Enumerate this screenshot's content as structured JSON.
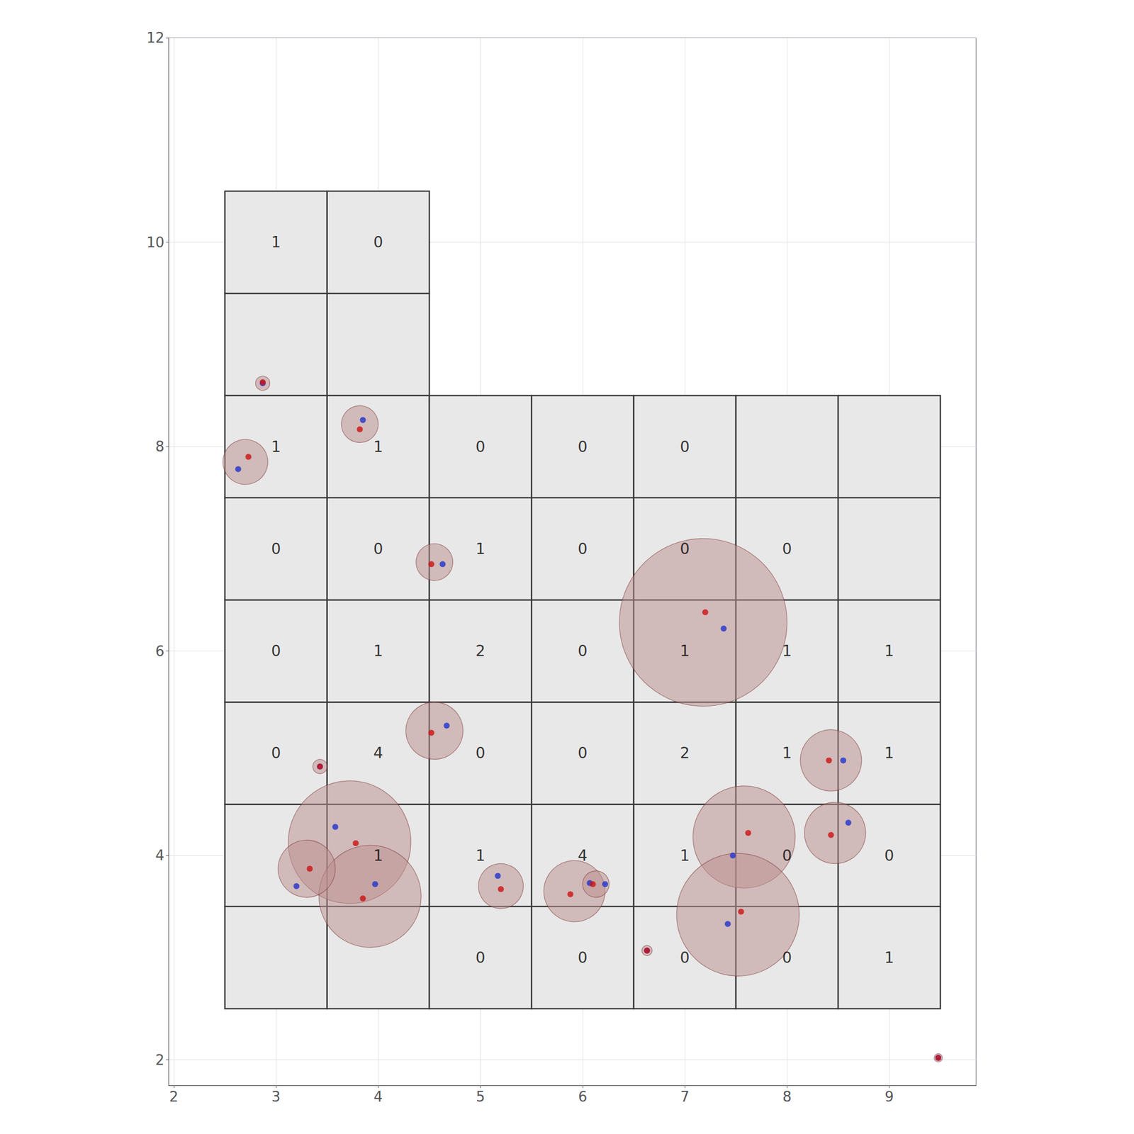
{
  "chart_data": {
    "type": "scatter",
    "xlim": [
      1.95,
      9.85
    ],
    "ylim": [
      1.75,
      12
    ],
    "xticks": [
      2,
      3,
      4,
      5,
      6,
      7,
      8,
      9
    ],
    "yticks": [
      2,
      4,
      6,
      8,
      10,
      12
    ],
    "grid": true,
    "series": [
      {
        "type": "cells",
        "color": "#e8e8e8",
        "blocks": [
          {
            "cols": [
              2.5,
              3.5,
              4.5
            ],
            "rows": [
              8.5,
              9.5,
              10.5
            ]
          },
          {
            "cols": [
              2.5,
              3.5,
              4.5,
              5.5,
              6.5,
              7.5,
              8.5,
              9.5
            ],
            "rows": [
              2.5,
              3.5,
              4.5,
              5.5,
              6.5,
              7.5,
              8.5
            ]
          }
        ]
      },
      {
        "type": "circles",
        "color": "#bc8f8f",
        "x": [
          2.87,
          2.7,
          3.82,
          4.55,
          7.18,
          8.43,
          4.55,
          3.43,
          3.72,
          3.92,
          3.3,
          5.2,
          5.92,
          6.13,
          6.63,
          7.58,
          7.52,
          8.47,
          9.48
        ],
        "y": [
          8.62,
          7.85,
          8.22,
          6.87,
          6.28,
          4.93,
          5.22,
          4.87,
          4.13,
          3.6,
          3.87,
          3.7,
          3.65,
          3.72,
          3.07,
          4.18,
          3.42,
          4.22,
          2.02
        ],
        "r": [
          0.07,
          0.22,
          0.18,
          0.18,
          0.82,
          0.3,
          0.28,
          0.07,
          0.6,
          0.5,
          0.28,
          0.22,
          0.3,
          0.13,
          0.05,
          0.5,
          0.6,
          0.3,
          0.04
        ]
      },
      {
        "type": "scatter",
        "color": "#2233cc",
        "x": [
          2.87,
          2.63,
          3.85,
          4.63,
          7.38,
          8.55,
          4.67,
          3.43,
          3.58,
          3.97,
          3.2,
          5.17,
          6.07,
          6.22,
          6.63,
          7.47,
          7.42,
          8.6,
          9.48
        ],
        "y": [
          8.62,
          7.78,
          8.26,
          6.85,
          6.22,
          4.93,
          5.27,
          4.87,
          4.28,
          3.72,
          3.7,
          3.8,
          3.73,
          3.72,
          3.07,
          4.0,
          3.33,
          4.32,
          2.02
        ]
      },
      {
        "type": "scatter",
        "color": "#cc1111",
        "x": [
          2.87,
          2.73,
          3.82,
          4.52,
          7.2,
          8.41,
          4.52,
          3.43,
          3.78,
          3.85,
          3.33,
          5.2,
          5.88,
          6.1,
          6.63,
          7.62,
          7.55,
          8.43,
          9.48
        ],
        "y": [
          8.63,
          7.9,
          8.17,
          6.85,
          6.38,
          4.93,
          5.2,
          4.87,
          4.12,
          3.58,
          3.87,
          3.67,
          3.62,
          3.72,
          3.07,
          4.22,
          3.45,
          4.2,
          2.02
        ]
      },
      {
        "type": "text",
        "x": [
          3.0,
          4.0,
          3.0,
          4.0,
          5.0,
          6.0,
          7.0,
          3.0,
          4.0,
          5.0,
          6.0,
          7.0,
          8.0,
          3.0,
          4.0,
          5.0,
          6.0,
          7.0,
          8.0,
          9.0,
          3.0,
          4.0,
          5.0,
          6.0,
          7.0,
          8.0,
          9.0,
          4.0,
          5.0,
          6.0,
          7.0,
          8.0,
          9.0,
          5.0,
          6.0,
          7.0,
          8.0,
          9.0
        ],
        "y": [
          10.0,
          10.0,
          8.0,
          8.0,
          8.0,
          8.0,
          8.0,
          7.0,
          7.0,
          7.0,
          7.0,
          7.0,
          7.0,
          6.0,
          6.0,
          6.0,
          6.0,
          6.0,
          6.0,
          6.0,
          5.0,
          5.0,
          5.0,
          5.0,
          5.0,
          5.0,
          5.0,
          4.0,
          4.0,
          4.0,
          4.0,
          4.0,
          4.0,
          3.0,
          3.0,
          3.0,
          3.0,
          3.0
        ],
        "labels": [
          "1",
          "0",
          "1",
          "1",
          "0",
          "0",
          "0",
          "0",
          "0",
          "1",
          "0",
          "0",
          "0",
          "0",
          "1",
          "2",
          "0",
          "1",
          "1",
          "1",
          "0",
          "4",
          "0",
          "0",
          "2",
          "1",
          "1",
          "1",
          "1",
          "4",
          "1",
          "0",
          "0",
          "0",
          "0",
          "0",
          "0",
          "1"
        ]
      }
    ]
  }
}
